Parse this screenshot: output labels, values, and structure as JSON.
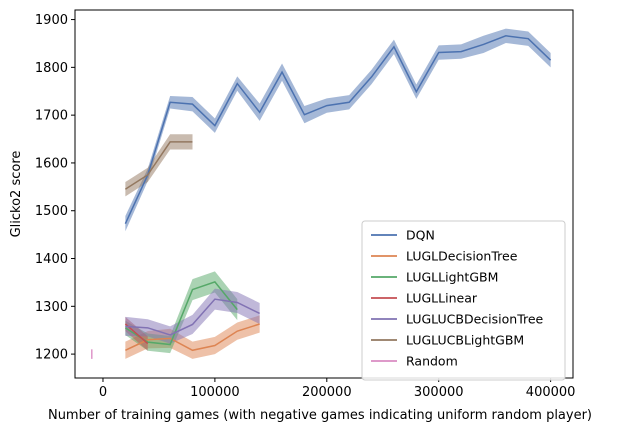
{
  "chart_data": {
    "type": "line",
    "title": "",
    "xlabel": "Number of training games (with negative games indicating uniform random player)",
    "ylabel": "Glicko2 score",
    "xlim": [
      -25000,
      420000
    ],
    "ylim": [
      1150,
      1920
    ],
    "x_ticks": [
      0,
      100000,
      200000,
      300000,
      400000
    ],
    "x_tick_labels": [
      "0",
      "100000",
      "200000",
      "300000",
      "400000"
    ],
    "y_ticks": [
      1200,
      1300,
      1400,
      1500,
      1600,
      1700,
      1800,
      1900
    ],
    "y_tick_labels": [
      "1200",
      "1300",
      "1400",
      "1500",
      "1600",
      "1700",
      "1800",
      "1900"
    ],
    "grid": false,
    "legend_position": "lower-right",
    "series": [
      {
        "name": "DQN",
        "color": "#4c72b0",
        "x": [
          20000,
          40000,
          60000,
          80000,
          100000,
          120000,
          140000,
          160000,
          180000,
          200000,
          220000,
          240000,
          260000,
          280000,
          300000,
          320000,
          340000,
          360000,
          380000,
          400000
        ],
        "y": [
          1473,
          1575,
          1727,
          1723,
          1678,
          1766,
          1706,
          1790,
          1701,
          1720,
          1727,
          1780,
          1843,
          1749,
          1831,
          1833,
          1848,
          1866,
          1860,
          1815
        ],
        "band": [
          16,
          13,
          13,
          15,
          15,
          15,
          18,
          18,
          18,
          15,
          15,
          15,
          15,
          15,
          15,
          15,
          18,
          15,
          15,
          15
        ]
      },
      {
        "name": "LUGLDecisionTree",
        "color": "#dd8452",
        "x": [
          20000,
          40000,
          60000,
          80000,
          100000,
          120000,
          140000
        ],
        "y": [
          1208,
          1230,
          1233,
          1208,
          1218,
          1248,
          1263
        ],
        "band": [
          18,
          18,
          20,
          18,
          18,
          18,
          18
        ]
      },
      {
        "name": "LUGLLightGBM",
        "color": "#55a868",
        "x": [
          20000,
          40000,
          60000,
          80000,
          100000,
          120000
        ],
        "y": [
          1255,
          1225,
          1220,
          1335,
          1351,
          1293
        ],
        "band": [
          15,
          18,
          18,
          22,
          22,
          22
        ]
      },
      {
        "name": "LUGLLinear",
        "color": "#c44e52",
        "x": [
          20000,
          40000
        ],
        "y": [
          1263,
          1222
        ],
        "band": [
          15,
          15
        ]
      },
      {
        "name": "LUGLUCBDecisionTree",
        "color": "#8172b3",
        "x": [
          20000,
          40000,
          60000,
          80000,
          100000,
          120000,
          140000
        ],
        "y": [
          1258,
          1255,
          1240,
          1262,
          1315,
          1308,
          1285
        ],
        "band": [
          20,
          18,
          18,
          20,
          22,
          22,
          22
        ]
      },
      {
        "name": "LUGLUCBLightGBM",
        "color": "#937860",
        "x": [
          20000,
          40000,
          60000,
          80000
        ],
        "y": [
          1545,
          1575,
          1644,
          1644
        ],
        "band": [
          15,
          15,
          16,
          16
        ]
      },
      {
        "name": "Random",
        "color": "#da8bc3",
        "x": [
          -10000
        ],
        "y": [
          1200
        ],
        "band": [
          10
        ]
      }
    ]
  }
}
